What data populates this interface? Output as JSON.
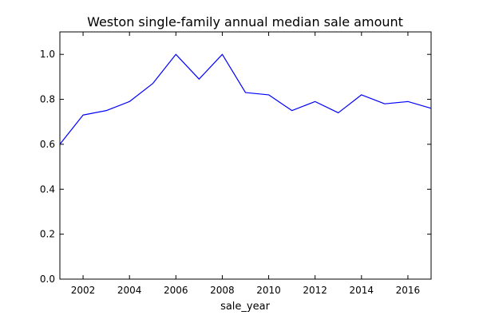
{
  "chart_data": {
    "type": "line",
    "title": "Weston single-family annual median sale amount",
    "xlabel": "sale_year",
    "ylabel": "",
    "xlim": [
      2001,
      2017
    ],
    "ylim": [
      0.0,
      1.1
    ],
    "x_ticks": [
      2002,
      2004,
      2006,
      2008,
      2010,
      2012,
      2014,
      2016
    ],
    "y_ticks": [
      0.0,
      0.2,
      0.4,
      0.6,
      0.8,
      1.0
    ],
    "x_tick_labels": [
      "2002",
      "2004",
      "2006",
      "2008",
      "2010",
      "2012",
      "2014",
      "2016"
    ],
    "y_tick_labels": [
      "0.0",
      "0.2",
      "0.4",
      "0.6",
      "0.8",
      "1.0"
    ],
    "grid": false,
    "legend": "none",
    "series": [
      {
        "color": "#0000ff",
        "x": [
          2001,
          2002,
          2003,
          2004,
          2005,
          2006,
          2007,
          2008,
          2009,
          2010,
          2011,
          2012,
          2013,
          2014,
          2015,
          2016,
          2017
        ],
        "y": [
          0.6,
          0.73,
          0.75,
          0.79,
          0.87,
          1.0,
          0.89,
          1.0,
          0.83,
          0.82,
          0.75,
          0.79,
          0.74,
          0.82,
          0.78,
          0.79,
          0.76
        ]
      }
    ]
  }
}
